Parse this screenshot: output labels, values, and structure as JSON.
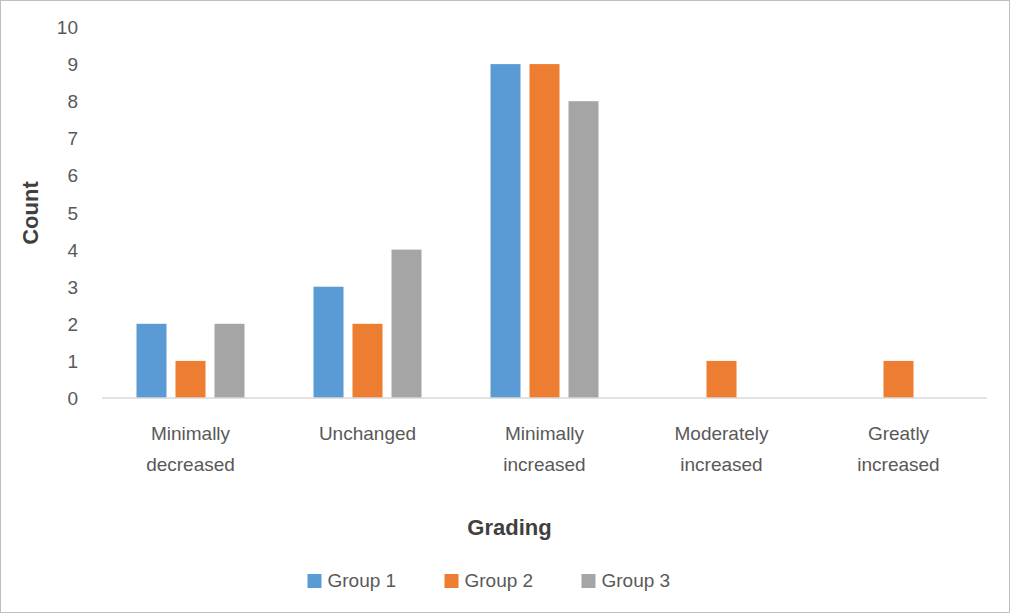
{
  "chart_data": {
    "type": "bar",
    "x_label": "Grading",
    "y_label": "Count",
    "categories": [
      "Minimally decreased",
      "Unchanged",
      "Minimally increased",
      "Moderately increased",
      "Greatly increased"
    ],
    "series": [
      {
        "name": "Group 1",
        "color": "#5b9bd5",
        "values": [
          2,
          3,
          9,
          0,
          0
        ]
      },
      {
        "name": "Group 2",
        "color": "#ed7d31",
        "values": [
          1,
          2,
          9,
          1,
          1
        ]
      },
      {
        "name": "Group 3",
        "color": "#a5a5a5",
        "values": [
          2,
          4,
          8,
          0,
          0
        ]
      }
    ],
    "ylim": [
      0,
      10
    ],
    "yticks": [
      0,
      1,
      2,
      3,
      4,
      5,
      6,
      7,
      8,
      9,
      10
    ],
    "grid": false,
    "legend": "bottom"
  }
}
